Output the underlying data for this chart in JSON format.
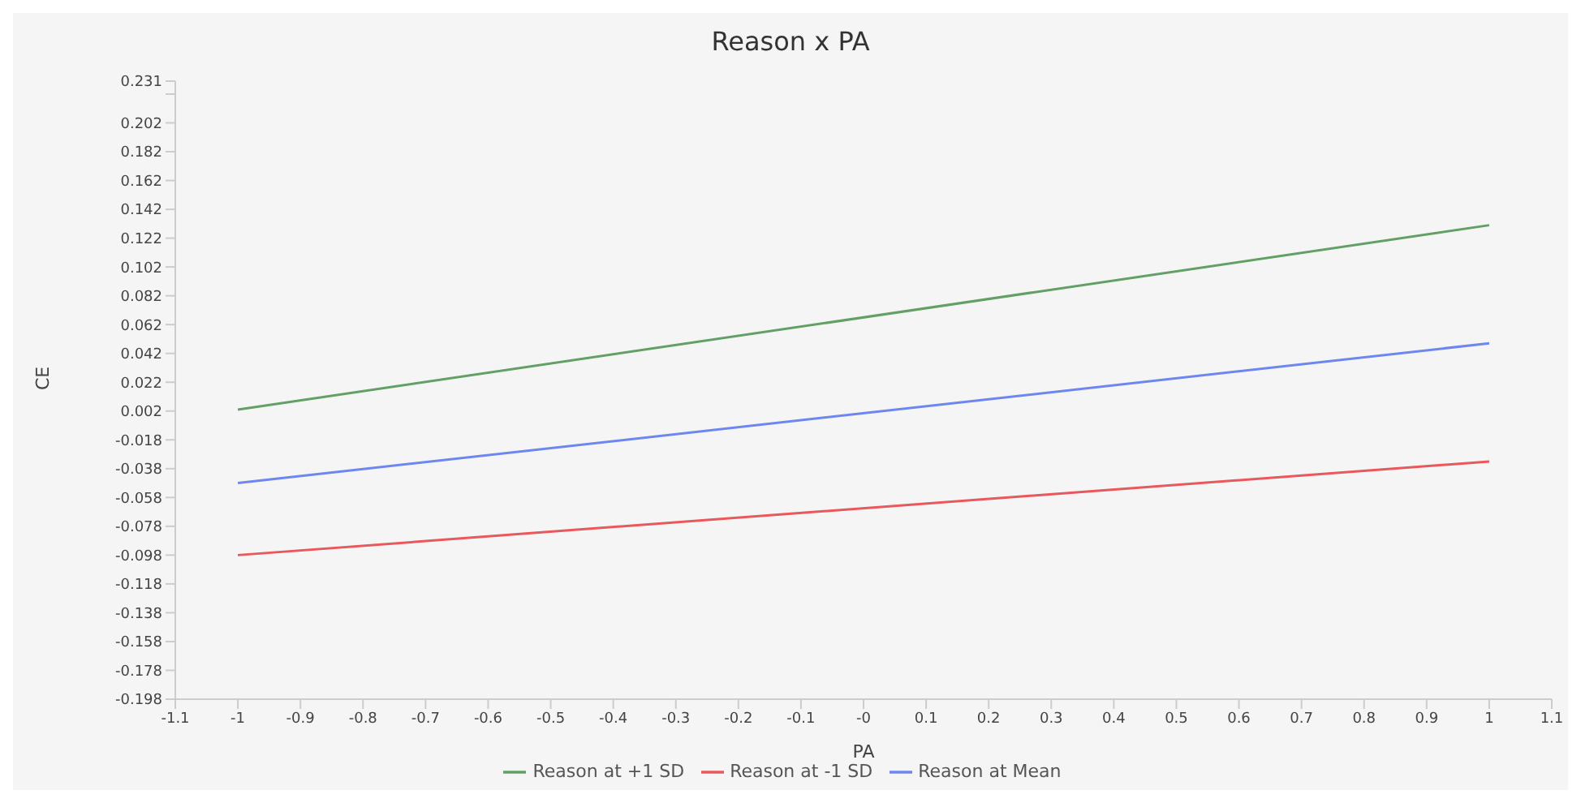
{
  "chart_data": {
    "type": "line",
    "title": "Reason x PA",
    "xlabel": "PA",
    "ylabel": "CE",
    "x": [
      -1,
      1
    ],
    "series": [
      {
        "name": "Reason at -1 SD",
        "color": "#e8585c",
        "values": [
          -0.098,
          -0.033
        ]
      },
      {
        "name": "Reason at Mean",
        "color": "#6e87ef",
        "values": [
          -0.048,
          0.049
        ]
      },
      {
        "name": "Reason at +1 SD",
        "color": "#62a065",
        "values": [
          0.003,
          0.131
        ]
      }
    ],
    "xlim": [
      -1.1,
      1.1
    ],
    "xticks": [
      -1.1,
      -1,
      -0.9,
      -0.8,
      -0.7,
      -0.6,
      -0.5,
      -0.4,
      -0.3,
      -0.2,
      -0.1,
      {
        "value": 0,
        "label": "-0"
      },
      0.1,
      0.2,
      0.3,
      0.4,
      0.5,
      0.6,
      0.7,
      0.8,
      0.9,
      1,
      1.1
    ],
    "ylim": [
      -0.198,
      0.231
    ],
    "yticks": [
      -0.198,
      -0.178,
      -0.158,
      -0.138,
      -0.118,
      -0.098,
      -0.078,
      -0.058,
      -0.038,
      -0.018,
      0.002,
      0.022,
      0.042,
      0.062,
      0.082,
      0.102,
      0.122,
      0.142,
      0.162,
      0.182,
      0.202,
      {
        "value": 0.222,
        "label": null
      },
      0.231
    ],
    "grid": false,
    "legend": "bottom",
    "marker": "none",
    "line_style": "solid"
  }
}
